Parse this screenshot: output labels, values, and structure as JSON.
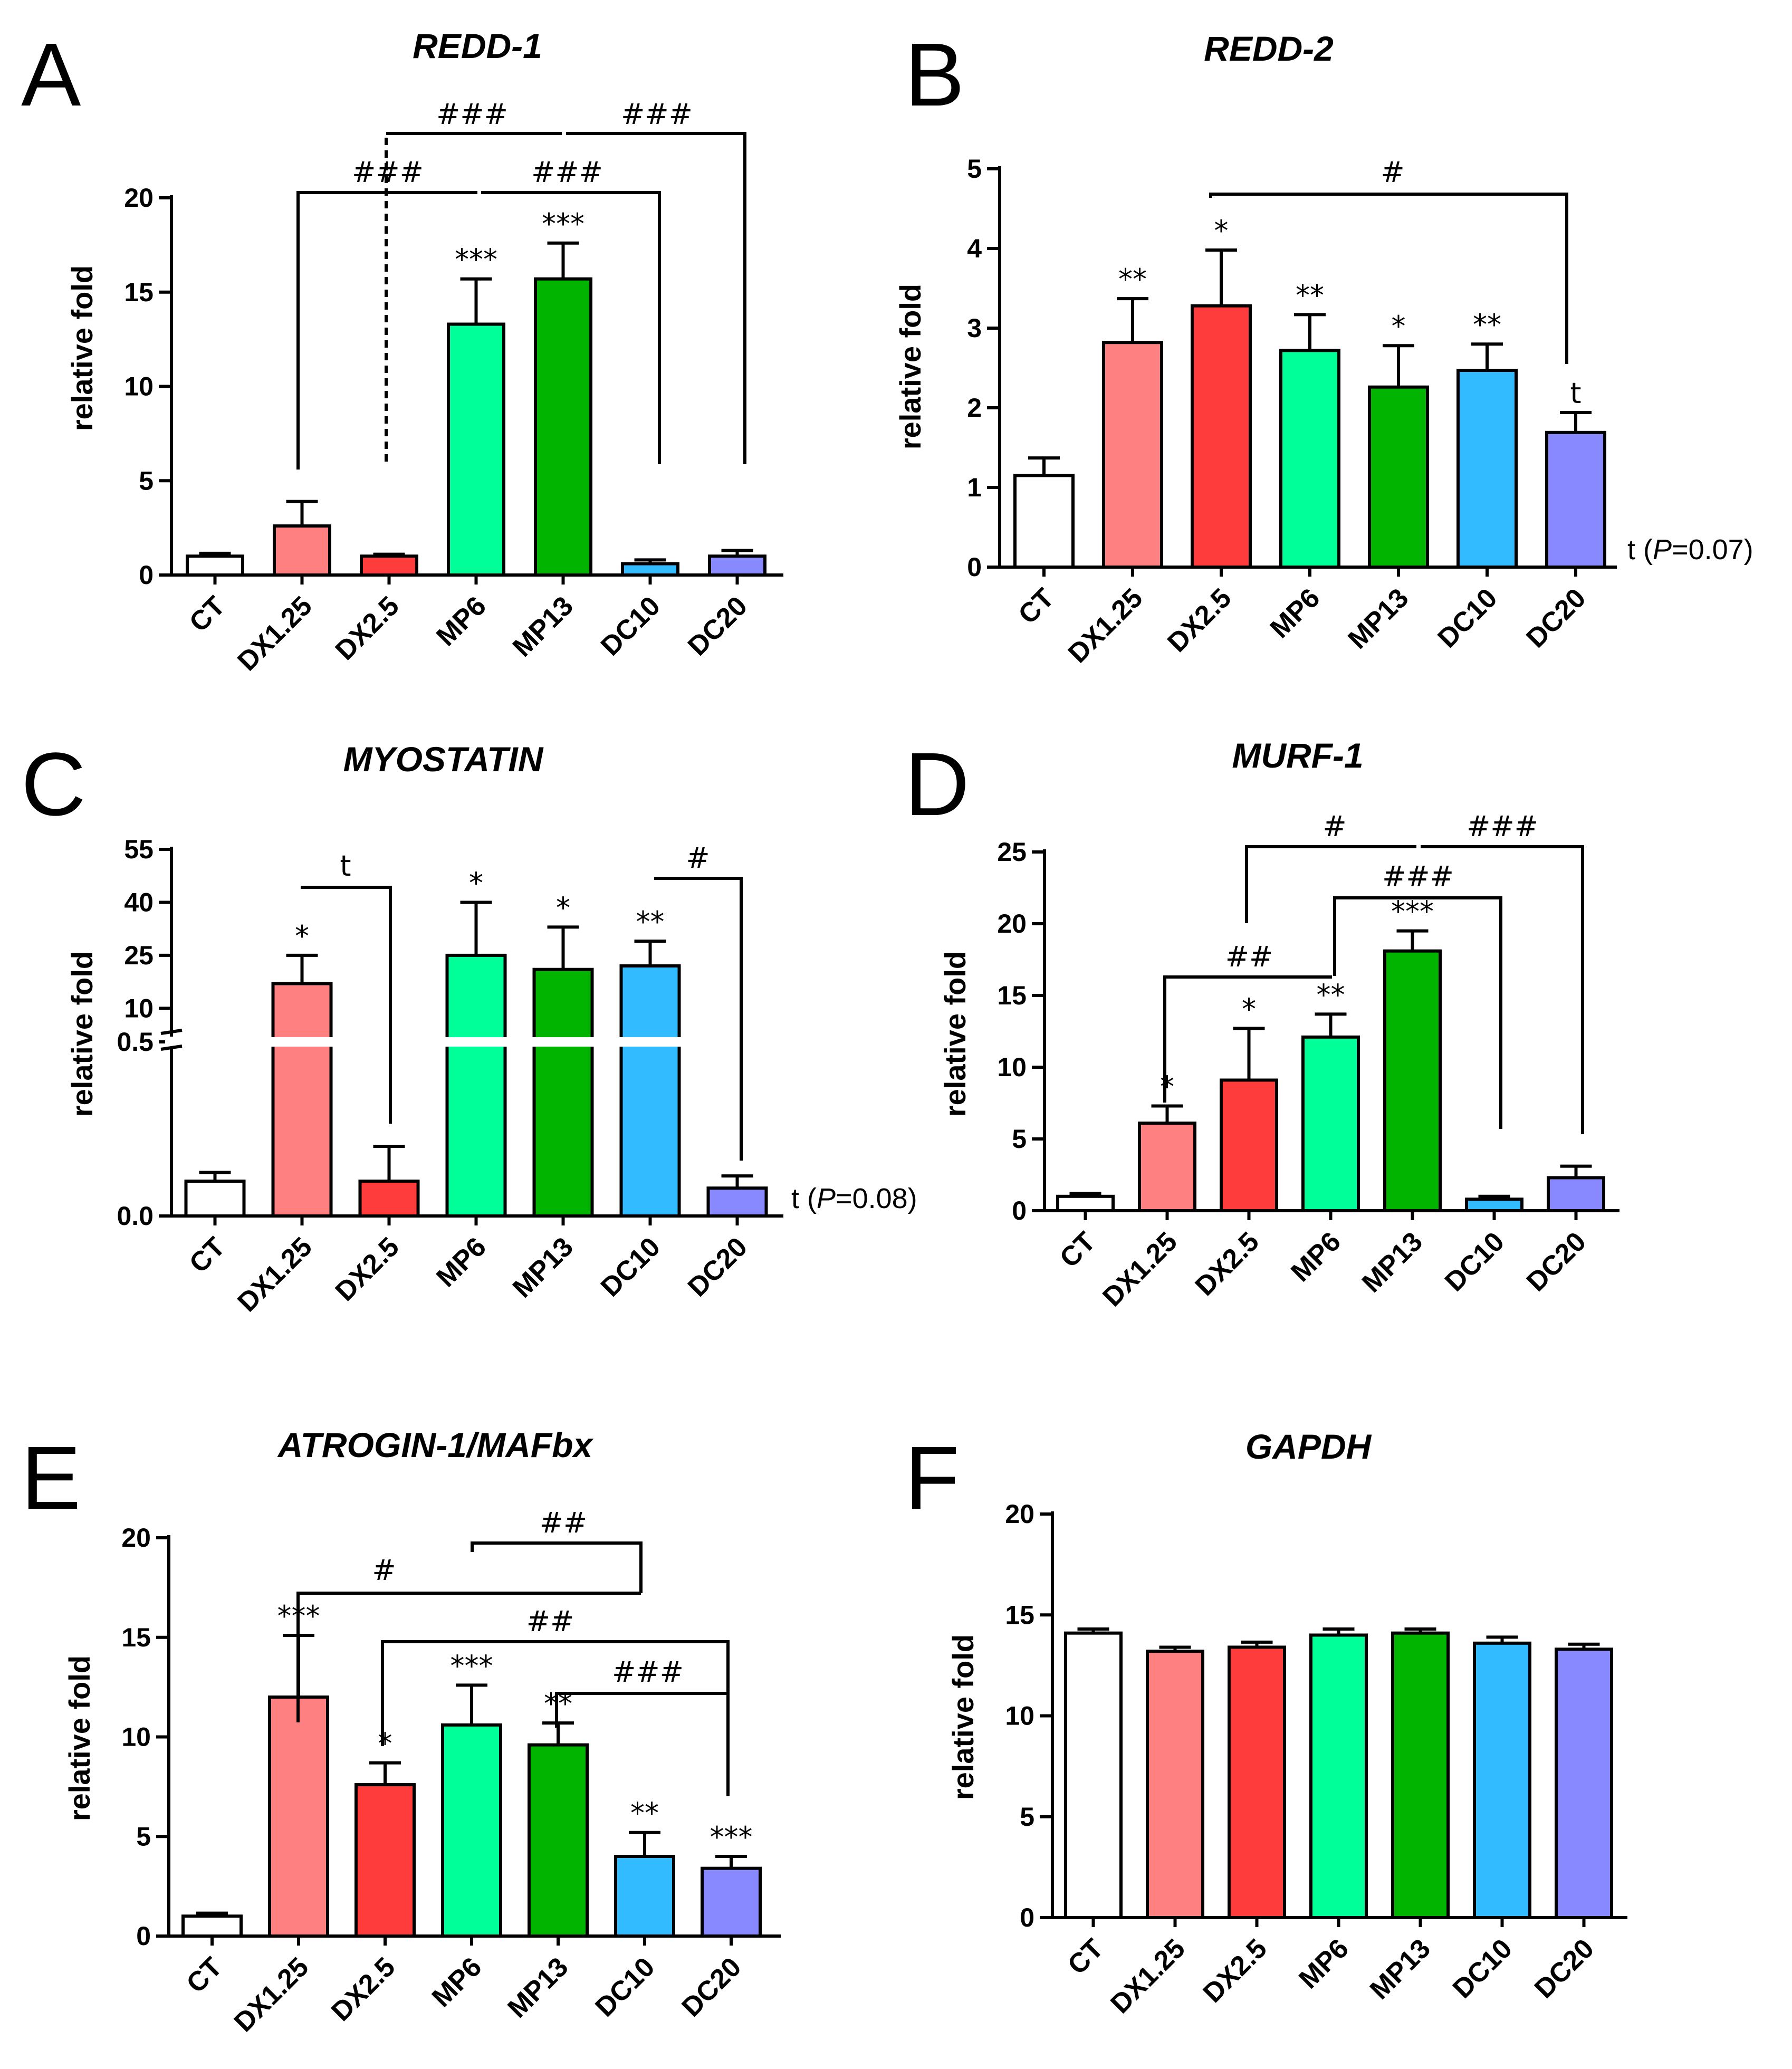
{
  "figure": {
    "colors": {
      "CT": "#ffffff",
      "DX1.25": "#ff8080",
      "DX2.5": "#ff3c3c",
      "MP6": "#00ff99",
      "MP13": "#00b400",
      "DC10": "#33bbff",
      "DC20": "#8888ff"
    }
  },
  "chart_data": [
    {
      "panel": "A",
      "type": "bar",
      "title": "REDD-1",
      "ylabel": "relative fold",
      "xlabel": "",
      "ylim": [
        0,
        20
      ],
      "yticks": [
        "0",
        "5",
        "10",
        "15",
        "20"
      ],
      "categories": [
        "CT",
        "DX1.25",
        "DX2.5",
        "MP6",
        "MP13",
        "DC10",
        "DC20"
      ],
      "values": [
        1.0,
        2.6,
        1.0,
        13.3,
        15.7,
        0.6,
        1.0
      ],
      "errors": [
        0.15,
        1.3,
        0.1,
        2.4,
        1.9,
        0.2,
        0.3
      ],
      "sig": [
        "",
        "",
        "",
        "***",
        "***",
        "",
        ""
      ],
      "brackets": [
        "###",
        "###",
        "###",
        "###"
      ]
    },
    {
      "panel": "B",
      "type": "bar",
      "title": "REDD-2",
      "ylabel": "relative fold",
      "xlabel": "",
      "ylim": [
        0,
        5
      ],
      "yticks": [
        "0",
        "1",
        "2",
        "3",
        "4",
        "5"
      ],
      "categories": [
        "CT",
        "DX1.25",
        "DX2.5",
        "MP6",
        "MP13",
        "DC10",
        "DC20"
      ],
      "values": [
        1.15,
        2.82,
        3.28,
        2.72,
        2.26,
        2.47,
        1.69
      ],
      "errors": [
        0.22,
        0.55,
        0.7,
        0.45,
        0.52,
        0.33,
        0.25
      ],
      "sig": [
        "",
        "**",
        "*",
        "**",
        "*",
        "**",
        "t"
      ],
      "brackets": [
        "#"
      ],
      "note_prefix": "t (",
      "note_italic": "P",
      "note_suffix": "=0.07)"
    },
    {
      "panel": "C",
      "type": "bar",
      "title": "MYOSTATIN",
      "ylabel": "relative fold",
      "xlabel": "",
      "axis": "broken",
      "ylim_lower": [
        0,
        0.5
      ],
      "ylim_upper": [
        0.5,
        55
      ],
      "yticks": [
        "0.0",
        "0.5",
        "10",
        "25",
        "40",
        "55"
      ],
      "categories": [
        "CT",
        "DX1.25",
        "DX2.5",
        "MP6",
        "MP13",
        "DC10",
        "DC20"
      ],
      "values": [
        0.1,
        17.0,
        0.1,
        25.0,
        21.0,
        22.0,
        0.08
      ],
      "errors": [
        0.025,
        8.0,
        0.1,
        15.0,
        12.0,
        7.0,
        0.035
      ],
      "sig": [
        "",
        "*",
        "",
        "*",
        "*",
        "**",
        ""
      ],
      "brackets": [
        "t",
        "#"
      ],
      "note_prefix": "t (",
      "note_italic": "P",
      "note_suffix": "=0.08)"
    },
    {
      "panel": "D",
      "type": "bar",
      "title": "MURF-1",
      "ylabel": "relative fold",
      "xlabel": "",
      "ylim": [
        0,
        25
      ],
      "yticks": [
        "0",
        "5",
        "10",
        "15",
        "20",
        "25"
      ],
      "categories": [
        "CT",
        "DX1.25",
        "DX2.5",
        "MP6",
        "MP13",
        "DC10",
        "DC20"
      ],
      "values": [
        1.0,
        6.1,
        9.1,
        12.1,
        18.1,
        0.8,
        2.3
      ],
      "errors": [
        0.2,
        1.2,
        3.6,
        1.6,
        1.4,
        0.2,
        0.8
      ],
      "sig": [
        "",
        "*",
        "*",
        "**",
        "***",
        "",
        ""
      ],
      "brackets": [
        "##",
        "#",
        "###",
        "###"
      ]
    },
    {
      "panel": "E",
      "type": "bar",
      "title": "ATROGIN-1/MAFbx",
      "ylabel": "relative fold",
      "xlabel": "",
      "ylim": [
        0,
        20
      ],
      "yticks": [
        "0",
        "5",
        "10",
        "15",
        "20"
      ],
      "categories": [
        "CT",
        "DX1.25",
        "DX2.5",
        "MP6",
        "MP13",
        "DC10",
        "DC20"
      ],
      "values": [
        1.0,
        12.0,
        7.6,
        10.6,
        9.6,
        4.0,
        3.4
      ],
      "errors": [
        0.15,
        3.1,
        1.1,
        2.0,
        1.1,
        1.2,
        0.6
      ],
      "sig": [
        "",
        "***",
        "*",
        "***",
        "**",
        "**",
        "***"
      ],
      "brackets": [
        "#",
        "##",
        "##",
        "###"
      ]
    },
    {
      "panel": "F",
      "type": "bar",
      "title": "GAPDH",
      "ylabel": "relative fold",
      "xlabel": "",
      "ylim": [
        0,
        20
      ],
      "yticks": [
        "0",
        "5",
        "10",
        "15",
        "20"
      ],
      "categories": [
        "CT",
        "DX1.25",
        "DX2.5",
        "MP6",
        "MP13",
        "DC10",
        "DC20"
      ],
      "values": [
        14.1,
        13.2,
        13.4,
        14.0,
        14.1,
        13.6,
        13.3
      ],
      "errors": [
        0.2,
        0.2,
        0.25,
        0.3,
        0.2,
        0.3,
        0.25
      ],
      "sig": [
        "",
        "",
        "",
        "",
        "",
        "",
        ""
      ],
      "brackets": []
    }
  ]
}
